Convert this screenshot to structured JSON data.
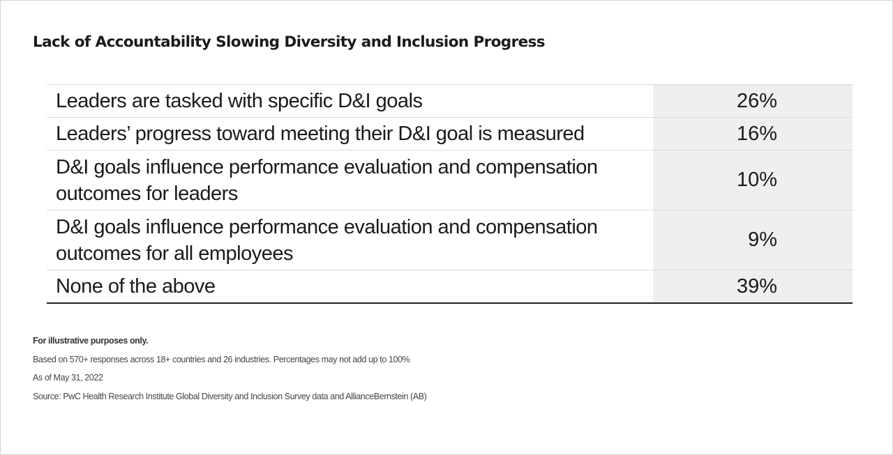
{
  "title": "Lack of Accountability Slowing Diversity and Inclusion Progress",
  "chart_data": {
    "type": "table",
    "title": "Lack of Accountability Slowing Diversity and Inclusion Progress",
    "categories": [
      "Leaders are tasked with specific D&I goals",
      "Leaders’ progress toward meeting their D&I goal is measured",
      "D&I goals influence performance evaluation and compensation outcomes for leaders",
      "D&I goals influence performance evaluation and compensation outcomes for all employees",
      "None of the above"
    ],
    "values": [
      26,
      16,
      10,
      9,
      39
    ],
    "value_labels": [
      "26%",
      "16%",
      "10%",
      "9%",
      "39%"
    ],
    "unit": "%",
    "rows": [
      {
        "label": "Leaders are tasked with specific D&I goals",
        "value": "26%"
      },
      {
        "label": "Leaders’ progress toward meeting their D&I goal is measured",
        "value": "16%"
      },
      {
        "label": "D&I goals influence performance evaluation and compensation outcomes for leaders",
        "value": "10%"
      },
      {
        "label": "D&I goals influence performance evaluation and compensation outcomes for all employees",
        "value": "9%"
      },
      {
        "label": "None of the above",
        "value": "39%"
      }
    ]
  },
  "notes": {
    "disclaimer": "For illustrative purposes only.",
    "basis": "Based on 570+ responses across 18+ countries and 26 industries. Percentages may not add up to 100%",
    "as_of": "As of May 31, 2022",
    "source": "Source: PwC Health Research Institute Global Diversity and Inclusion Survey data and AllianceBernstein (AB)"
  }
}
